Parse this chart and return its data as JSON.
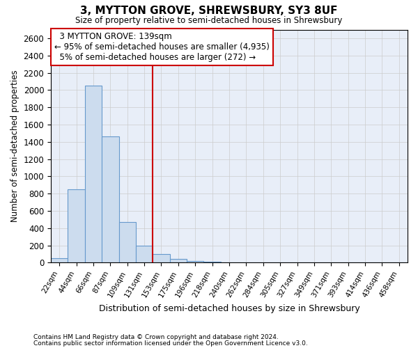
{
  "title": "3, MYTTON GROVE, SHREWSBURY, SY3 8UF",
  "subtitle": "Size of property relative to semi-detached houses in Shrewsbury",
  "xlabel": "Distribution of semi-detached houses by size in Shrewsbury",
  "ylabel": "Number of semi-detached properties",
  "bar_color": "#ccdcee",
  "bar_edge_color": "#6699cc",
  "categories": [
    "22sqm",
    "44sqm",
    "66sqm",
    "87sqm",
    "109sqm",
    "131sqm",
    "153sqm",
    "175sqm",
    "196sqm",
    "218sqm",
    "240sqm",
    "262sqm",
    "284sqm",
    "305sqm",
    "327sqm",
    "349sqm",
    "371sqm",
    "393sqm",
    "414sqm",
    "436sqm",
    "458sqm"
  ],
  "values": [
    50,
    850,
    2050,
    1460,
    470,
    200,
    100,
    45,
    20,
    8,
    3,
    3,
    2,
    0,
    0,
    0,
    0,
    0,
    0,
    0,
    0
  ],
  "red_line_index": 6,
  "property_label": "3 MYTTON GROVE: 139sqm",
  "pct_smaller": 95,
  "n_smaller": 4935,
  "pct_larger": 5,
  "n_larger": 272,
  "red_line_color": "#cc0000",
  "annotation_box_color": "#ffffff",
  "annotation_box_edge": "#cc0000",
  "ylim": [
    0,
    2700
  ],
  "ytick_interval": 200,
  "grid_color": "#cccccc",
  "background_color": "#ffffff",
  "plot_bg_color": "#e8eef8",
  "footnote1": "Contains HM Land Registry data © Crown copyright and database right 2024.",
  "footnote2": "Contains public sector information licensed under the Open Government Licence v3.0."
}
